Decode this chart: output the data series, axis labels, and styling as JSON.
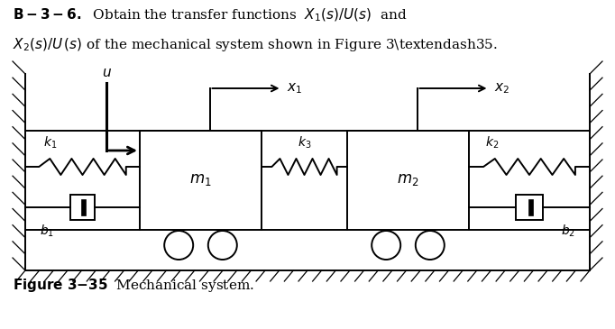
{
  "bg_color": "#ffffff",
  "line_color": "#000000",
  "fig_w": 6.82,
  "fig_h": 3.65,
  "dpi": 100
}
